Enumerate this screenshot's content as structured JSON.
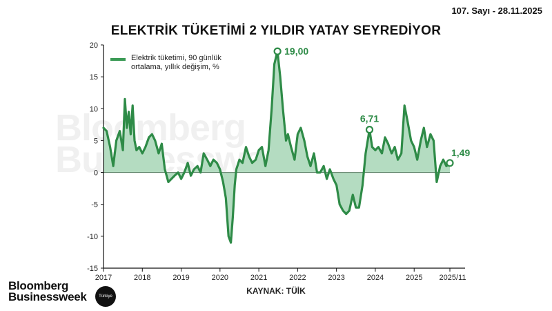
{
  "header": {
    "issue": "107. Sayı - 28.11.2025"
  },
  "footer": {
    "source": "KAYNAK: TÜİK",
    "brand_line1": "Bloomberg",
    "brand_line2": "Businessweek",
    "badge": "Türkiye"
  },
  "colors": {
    "line": "#2e8b47",
    "fill": "#b4dcc1",
    "axis": "#111111"
  },
  "chart_data": {
    "type": "area",
    "title": "ELEKTRİK TÜKETİMİ 2 YILDIR YATAY SEYREDİYOR",
    "legend": [
      "Elektrik tüketimi, 90 günlük",
      "ortalama, yıllık değişim, %"
    ],
    "legend_position": "top-left",
    "ylim": [
      -15,
      20
    ],
    "yticks": [
      20,
      15,
      10,
      5,
      0,
      -5,
      -10,
      -15
    ],
    "xlim": [
      2017.0,
      2025.92
    ],
    "xticks": [
      {
        "x": 2017.0,
        "label": "2017"
      },
      {
        "x": 2018.0,
        "label": "2018"
      },
      {
        "x": 2019.0,
        "label": "2019"
      },
      {
        "x": 2020.0,
        "label": "2020"
      },
      {
        "x": 2021.0,
        "label": "2021"
      },
      {
        "x": 2022.0,
        "label": "2022"
      },
      {
        "x": 2023.0,
        "label": "2023"
      },
      {
        "x": 2024.0,
        "label": "2024"
      },
      {
        "x": 2025.0,
        "label": "2025"
      },
      {
        "x": 2025.92,
        "label": "2025/11"
      }
    ],
    "grid": false,
    "annotations": [
      {
        "x": 2021.48,
        "y": 19.0,
        "label": "19,00"
      },
      {
        "x": 2023.85,
        "y": 6.71,
        "label": "6,71"
      },
      {
        "x": 2025.92,
        "y": 1.49,
        "label": "1,49"
      }
    ],
    "series": [
      {
        "x": [
          2017.0,
          2017.08,
          2017.17,
          2017.25,
          2017.33,
          2017.42,
          2017.5,
          2017.55,
          2017.6,
          2017.65,
          2017.7,
          2017.75,
          2017.8,
          2017.85,
          2017.92,
          2018.0,
          2018.08,
          2018.17,
          2018.25,
          2018.33,
          2018.42,
          2018.5,
          2018.58,
          2018.67,
          2018.75,
          2018.83,
          2018.92,
          2019.0,
          2019.08,
          2019.17,
          2019.25,
          2019.33,
          2019.42,
          2019.5,
          2019.58,
          2019.67,
          2019.75,
          2019.83,
          2019.92,
          2020.0,
          2020.08,
          2020.15,
          2020.22,
          2020.28,
          2020.33,
          2020.38,
          2020.42,
          2020.5,
          2020.58,
          2020.67,
          2020.75,
          2020.83,
          2020.92,
          2021.0,
          2021.08,
          2021.17,
          2021.25,
          2021.33,
          2021.4,
          2021.48,
          2021.55,
          2021.62,
          2021.7,
          2021.75,
          2021.83,
          2021.92,
          2022.0,
          2022.08,
          2022.17,
          2022.25,
          2022.33,
          2022.42,
          2022.5,
          2022.58,
          2022.67,
          2022.75,
          2022.83,
          2022.92,
          2023.0,
          2023.08,
          2023.17,
          2023.25,
          2023.33,
          2023.42,
          2023.5,
          2023.58,
          2023.67,
          2023.75,
          2023.85,
          2023.92,
          2024.0,
          2024.08,
          2024.17,
          2024.25,
          2024.33,
          2024.42,
          2024.5,
          2024.58,
          2024.67,
          2024.75,
          2024.83,
          2024.92,
          2025.0,
          2025.08,
          2025.17,
          2025.25,
          2025.33,
          2025.42,
          2025.5,
          2025.58,
          2025.67,
          2025.75,
          2025.83,
          2025.92
        ],
        "values": [
          7.0,
          6.5,
          4.0,
          1.0,
          5.0,
          6.5,
          3.5,
          11.5,
          7.0,
          9.5,
          6.0,
          10.5,
          5.0,
          3.5,
          4.0,
          3.0,
          4.0,
          5.5,
          6.0,
          5.0,
          3.0,
          4.5,
          0.5,
          -1.5,
          -1.0,
          -0.5,
          0.0,
          -1.0,
          0.0,
          1.5,
          -0.5,
          0.5,
          1.0,
          0.0,
          3.0,
          2.0,
          1.0,
          2.0,
          1.5,
          0.5,
          -1.5,
          -4.0,
          -10.0,
          -11.0,
          -7.0,
          -2.0,
          0.5,
          2.0,
          1.5,
          4.0,
          2.5,
          1.5,
          2.0,
          3.5,
          4.0,
          1.0,
          3.5,
          10.0,
          17.0,
          19.0,
          15.0,
          10.0,
          5.0,
          6.0,
          4.0,
          2.0,
          6.0,
          7.0,
          5.0,
          2.5,
          1.0,
          3.0,
          0.0,
          0.0,
          1.0,
          -1.0,
          0.5,
          -1.0,
          -2.0,
          -5.0,
          -6.0,
          -6.5,
          -6.0,
          -3.5,
          -5.5,
          -5.5,
          -2.0,
          3.0,
          6.71,
          4.0,
          3.5,
          4.0,
          3.0,
          5.5,
          4.5,
          3.0,
          4.0,
          2.0,
          3.0,
          10.5,
          8.0,
          5.0,
          4.0,
          2.0,
          5.0,
          7.0,
          4.0,
          6.0,
          5.0,
          -1.5,
          1.0,
          2.0,
          1.0,
          1.49
        ]
      }
    ]
  }
}
